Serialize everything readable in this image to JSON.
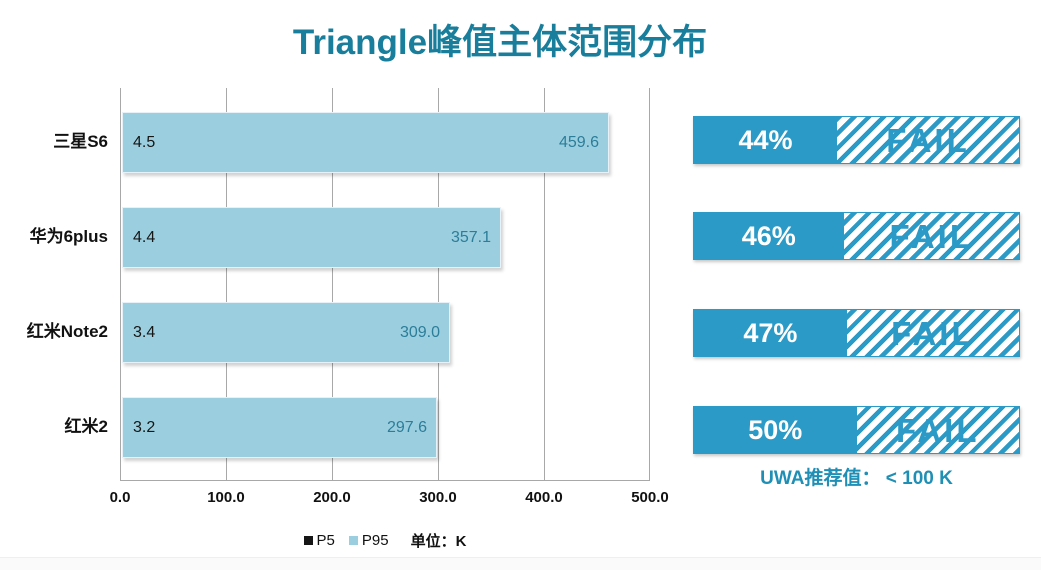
{
  "chart_data": {
    "type": "bar",
    "orientation": "horizontal",
    "title": "Triangle峰值主体范围分布",
    "categories": [
      "三星S6",
      "华为6plus",
      "红米Note2",
      "红米2"
    ],
    "series": [
      {
        "name": "P5",
        "values": [
          4.5,
          4.4,
          3.4,
          3.2
        ]
      },
      {
        "name": "P95",
        "values": [
          459.6,
          357.1,
          309.0,
          297.6
        ]
      }
    ],
    "value_labels": {
      "p5": [
        "4.5",
        "4.4",
        "3.4",
        "3.2"
      ],
      "p95": [
        "459.6",
        "357.1",
        "309.0",
        "297.6"
      ]
    },
    "x_ticks": [
      "0.0",
      "100.0",
      "200.0",
      "300.0",
      "400.0",
      "500.0"
    ],
    "xlim": [
      0,
      500
    ],
    "grid": true,
    "legend": [
      "P5",
      "P95"
    ],
    "legend_position": "bottom",
    "unit_label": "单位：K"
  },
  "right_panel": {
    "rows": [
      {
        "percent_label": "44%",
        "percent": 44,
        "fail_label": "FAIL"
      },
      {
        "percent_label": "46%",
        "percent": 46,
        "fail_label": "FAIL"
      },
      {
        "percent_label": "47%",
        "percent": 47,
        "fail_label": "FAIL"
      },
      {
        "percent_label": "50%",
        "percent": 50,
        "fail_label": "FAIL"
      }
    ],
    "note": "UWA推荐值： < 100 K"
  },
  "colors": {
    "title_teal": "#187E9B",
    "bar_fill": "#9BCFDF",
    "p95_value_text": "#2C7D99",
    "accent_blue": "#2C9AC6",
    "note_blue": "#1F8FB5",
    "gridline": "#A8A8A8",
    "p5_swatch": "#161616"
  }
}
